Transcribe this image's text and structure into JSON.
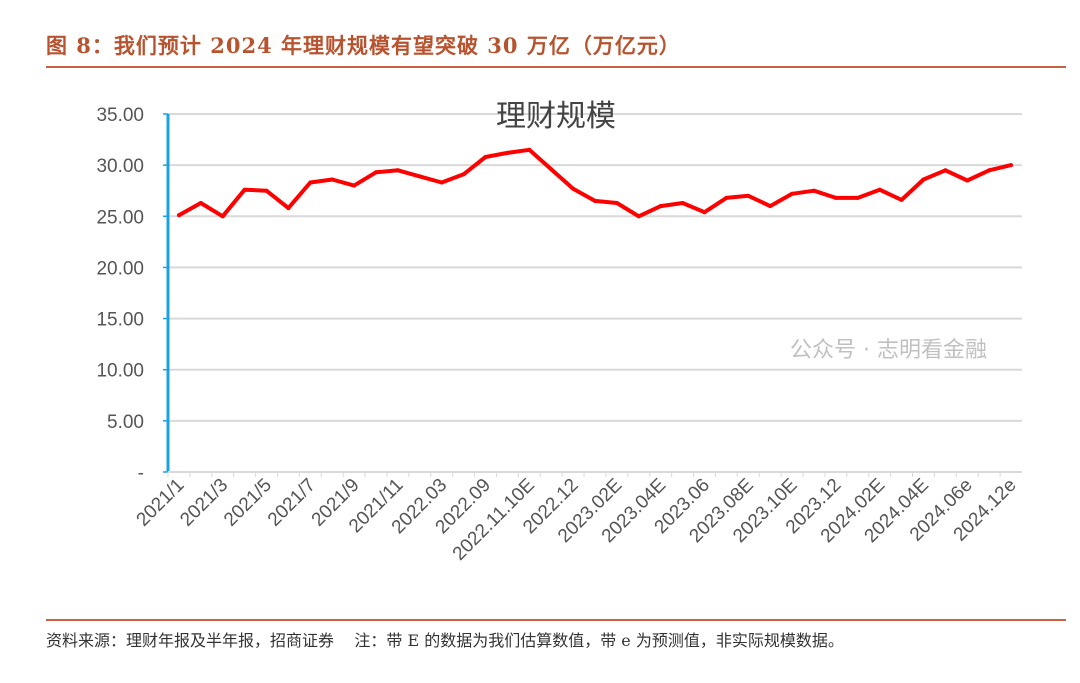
{
  "figure": {
    "title": "图 8：我们预计 2024 年理财规模有望突破 30 万亿（万亿元）",
    "source": "资料来源：理财年报及半年报，招商证券",
    "note": "注：带 E 的数据为我们估算数值，带 e 为预测值，非实际规模数据。",
    "watermark": "公众号 · 志明看金融",
    "accent_color": "#b8532f"
  },
  "chart_data": {
    "type": "line",
    "title": "理财规模",
    "xlabel": "",
    "ylabel": "",
    "ylim": [
      0,
      35
    ],
    "yticks": [
      "-",
      "5.00",
      "10.00",
      "15.00",
      "20.00",
      "25.00",
      "30.00",
      "35.00"
    ],
    "grid": true,
    "legend": "none",
    "line_color": "#ff0000",
    "axis_color": "#1aa3e0",
    "categories": [
      "2021/1",
      "",
      "2021/3",
      "",
      "2021/5",
      "",
      "2021/7",
      "",
      "2021/9",
      "",
      "2021/11",
      "",
      "2022.03",
      "",
      "2022.09",
      "",
      "2022.11.10E",
      "",
      "2022.12",
      "",
      "2023.02E",
      "",
      "2023.04E",
      "",
      "2023.06",
      "",
      "2023.08E",
      "",
      "2023.10E",
      "",
      "2023.12",
      "",
      "2024.02E",
      "",
      "2024.04E",
      "",
      "2024.06e",
      "",
      "2024.12e"
    ],
    "values": [
      25.1,
      26.3,
      25.0,
      27.6,
      27.5,
      25.8,
      28.3,
      28.6,
      28.0,
      29.3,
      29.5,
      28.9,
      28.3,
      29.1,
      30.8,
      31.2,
      31.5,
      29.6,
      27.7,
      26.5,
      26.3,
      25.0,
      26.0,
      26.3,
      25.4,
      26.8,
      27.0,
      26.0,
      27.2,
      27.5,
      26.8,
      26.8,
      27.6,
      26.6,
      28.6,
      29.5,
      28.5,
      29.5,
      30.0
    ]
  }
}
